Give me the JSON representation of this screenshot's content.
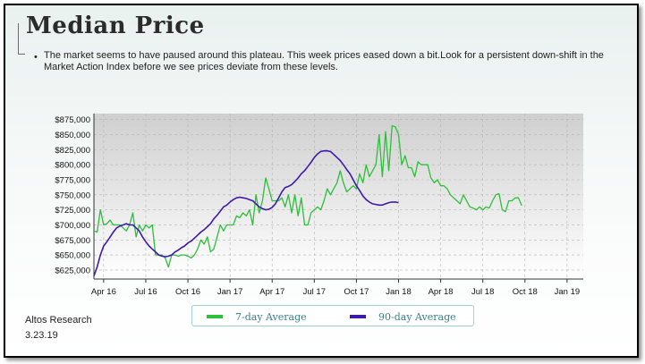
{
  "page": {
    "title": "Median Price",
    "bullet": "•",
    "description": "The market seems to have paused around this plateau. This week prices eased down a bit.Look for a persistent down-shift in the Market Action Index before we see prices deviate from these levels.",
    "source": "Altos Research",
    "date": "3.23.19"
  },
  "colors": {
    "seven_day": "#2dbf3a",
    "ninety_day": "#3d1aa8",
    "plot_bg_top": "#cfcfcf",
    "plot_bg_bottom": "#ffffff",
    "grid": "#b3b3b3"
  },
  "chart_data": {
    "type": "line",
    "title": "",
    "xlabel": "",
    "ylabel": "",
    "ylim": [
      610000,
      885000
    ],
    "xlim": [
      0,
      151
    ],
    "y_ticks": [
      625000,
      650000,
      675000,
      700000,
      725000,
      750000,
      775000,
      800000,
      825000,
      850000,
      875000
    ],
    "y_tick_labels": [
      "$625,000",
      "$650,000",
      "$675,000",
      "$700,000",
      "$725,000",
      "$750,000",
      "$775,000",
      "$800,000",
      "$825,000",
      "$850,000",
      "$875,000"
    ],
    "x_ticks": [
      3,
      16,
      29,
      42,
      55,
      68,
      81,
      94,
      107,
      120,
      133,
      146
    ],
    "x_tick_labels": [
      "Apr 16",
      "Jul 16",
      "Oct 16",
      "Jan 17",
      "Apr 17",
      "Jul 17",
      "Oct 17",
      "Jan 18",
      "Apr 18",
      "Jul 18",
      "Oct 18",
      "Jan 19"
    ],
    "grid": true,
    "legend_position": "bottom",
    "series": [
      {
        "name": "7-day Average",
        "points": [
          [
            0,
            690000
          ],
          [
            1,
            688000
          ],
          [
            2,
            725000
          ],
          [
            3,
            700000
          ],
          [
            4,
            702000
          ],
          [
            5,
            708000
          ],
          [
            6,
            700000
          ],
          [
            7,
            700000
          ],
          [
            8,
            700000
          ],
          [
            9,
            695000
          ],
          [
            10,
            690000
          ],
          [
            11,
            700000
          ],
          [
            12,
            720000
          ],
          [
            13,
            680000
          ],
          [
            14,
            700000
          ],
          [
            15,
            690000
          ],
          [
            16,
            700000
          ],
          [
            17,
            695000
          ],
          [
            18,
            700000
          ],
          [
            19,
            650000
          ],
          [
            20,
            650000
          ],
          [
            21,
            650000
          ],
          [
            22,
            645000
          ],
          [
            23,
            630000
          ],
          [
            24,
            650000
          ],
          [
            25,
            650000
          ],
          [
            26,
            648000
          ],
          [
            27,
            650000
          ],
          [
            28,
            650000
          ],
          [
            29,
            648000
          ],
          [
            30,
            645000
          ],
          [
            31,
            650000
          ],
          [
            32,
            660000
          ],
          [
            33,
            675000
          ],
          [
            34,
            668000
          ],
          [
            35,
            680000
          ],
          [
            36,
            655000
          ],
          [
            37,
            660000
          ],
          [
            38,
            680000
          ],
          [
            39,
            700000
          ],
          [
            40,
            690000
          ],
          [
            41,
            700000
          ],
          [
            42,
            700000
          ],
          [
            43,
            700000
          ],
          [
            44,
            715000
          ],
          [
            45,
            712000
          ],
          [
            46,
            720000
          ],
          [
            47,
            715000
          ],
          [
            48,
            725000
          ],
          [
            49,
            700000
          ],
          [
            50,
            750000
          ],
          [
            51,
            720000
          ],
          [
            52,
            740000
          ],
          [
            53,
            778000
          ],
          [
            54,
            760000
          ],
          [
            55,
            740000
          ],
          [
            56,
            740000
          ],
          [
            57,
            740000
          ],
          [
            58,
            745000
          ],
          [
            59,
            730000
          ],
          [
            60,
            750000
          ],
          [
            61,
            720000
          ],
          [
            62,
            750000
          ],
          [
            63,
            715000
          ],
          [
            64,
            745000
          ],
          [
            65,
            700000
          ],
          [
            66,
            700000
          ],
          [
            67,
            720000
          ],
          [
            68,
            725000
          ],
          [
            69,
            730000
          ],
          [
            70,
            725000
          ],
          [
            71,
            740000
          ],
          [
            72,
            760000
          ],
          [
            73,
            750000
          ],
          [
            74,
            760000
          ],
          [
            75,
            770000
          ],
          [
            76,
            790000
          ],
          [
            77,
            770000
          ],
          [
            78,
            755000
          ],
          [
            79,
            760000
          ],
          [
            80,
            765000
          ],
          [
            81,
            760000
          ],
          [
            82,
            785000
          ],
          [
            83,
            770000
          ],
          [
            84,
            800000
          ],
          [
            85,
            780000
          ],
          [
            86,
            790000
          ],
          [
            87,
            800000
          ],
          [
            88,
            850000
          ],
          [
            89,
            780000
          ],
          [
            90,
            855000
          ],
          [
            91,
            790000
          ],
          [
            92,
            865000
          ],
          [
            93,
            863000
          ],
          [
            94,
            850000
          ],
          [
            95,
            800000
          ],
          [
            96,
            815000
          ],
          [
            97,
            795000
          ],
          [
            98,
            795000
          ],
          [
            99,
            780000
          ],
          [
            100,
            805000
          ],
          [
            101,
            800000
          ],
          [
            102,
            800000
          ],
          [
            103,
            800000
          ],
          [
            104,
            778000
          ],
          [
            105,
            770000
          ],
          [
            106,
            775000
          ],
          [
            107,
            765000
          ],
          [
            108,
            765000
          ],
          [
            109,
            760000
          ],
          [
            110,
            750000
          ],
          [
            111,
            745000
          ],
          [
            112,
            740000
          ],
          [
            113,
            735000
          ],
          [
            114,
            750000
          ],
          [
            115,
            740000
          ],
          [
            116,
            730000
          ],
          [
            117,
            728000
          ],
          [
            118,
            725000
          ],
          [
            119,
            730000
          ],
          [
            120,
            725000
          ],
          [
            121,
            730000
          ],
          [
            122,
            728000
          ],
          [
            123,
            740000
          ],
          [
            124,
            750000
          ],
          [
            125,
            752000
          ],
          [
            126,
            725000
          ],
          [
            127,
            722000
          ],
          [
            128,
            740000
          ],
          [
            129,
            740000
          ],
          [
            130,
            745000
          ],
          [
            131,
            745000
          ],
          [
            132,
            732000
          ]
        ]
      },
      {
        "name": "90-day Average",
        "points": [
          [
            0,
            615000
          ],
          [
            1,
            630000
          ],
          [
            2,
            650000
          ],
          [
            3,
            665000
          ],
          [
            4,
            672000
          ],
          [
            5,
            680000
          ],
          [
            6,
            688000
          ],
          [
            7,
            695000
          ],
          [
            8,
            698000
          ],
          [
            9,
            700000
          ],
          [
            10,
            702000
          ],
          [
            11,
            700000
          ],
          [
            12,
            700000
          ],
          [
            13,
            695000
          ],
          [
            14,
            690000
          ],
          [
            15,
            680000
          ],
          [
            16,
            672000
          ],
          [
            17,
            665000
          ],
          [
            18,
            660000
          ],
          [
            19,
            655000
          ],
          [
            20,
            650000
          ],
          [
            21,
            648000
          ],
          [
            22,
            647000
          ],
          [
            23,
            648000
          ],
          [
            24,
            650000
          ],
          [
            25,
            655000
          ],
          [
            26,
            658000
          ],
          [
            27,
            662000
          ],
          [
            28,
            665000
          ],
          [
            29,
            670000
          ],
          [
            30,
            673000
          ],
          [
            31,
            678000
          ],
          [
            32,
            683000
          ],
          [
            33,
            688000
          ],
          [
            34,
            692000
          ],
          [
            35,
            697000
          ],
          [
            36,
            702000
          ],
          [
            37,
            710000
          ],
          [
            38,
            716000
          ],
          [
            39,
            723000
          ],
          [
            40,
            730000
          ],
          [
            41,
            733000
          ],
          [
            42,
            738000
          ],
          [
            43,
            742000
          ],
          [
            44,
            745000
          ],
          [
            45,
            746000
          ],
          [
            46,
            745000
          ],
          [
            47,
            744000
          ],
          [
            48,
            742000
          ],
          [
            49,
            740000
          ],
          [
            50,
            735000
          ],
          [
            51,
            730000
          ],
          [
            52,
            727000
          ],
          [
            53,
            725000
          ],
          [
            54,
            726000
          ],
          [
            55,
            729000
          ],
          [
            56,
            735000
          ],
          [
            57,
            745000
          ],
          [
            58,
            755000
          ],
          [
            59,
            762000
          ],
          [
            60,
            764000
          ],
          [
            61,
            767000
          ],
          [
            62,
            772000
          ],
          [
            63,
            778000
          ],
          [
            64,
            785000
          ],
          [
            65,
            790000
          ],
          [
            66,
            797000
          ],
          [
            67,
            804000
          ],
          [
            68,
            812000
          ],
          [
            69,
            818000
          ],
          [
            70,
            822000
          ],
          [
            71,
            823000
          ],
          [
            72,
            823000
          ],
          [
            73,
            822000
          ],
          [
            74,
            817000
          ],
          [
            75,
            812000
          ],
          [
            76,
            807000
          ],
          [
            77,
            800000
          ],
          [
            78,
            792000
          ],
          [
            79,
            785000
          ],
          [
            80,
            775000
          ],
          [
            81,
            765000
          ],
          [
            82,
            757000
          ],
          [
            83,
            748000
          ],
          [
            84,
            742000
          ],
          [
            85,
            738000
          ],
          [
            86,
            735000
          ],
          [
            87,
            734000
          ],
          [
            88,
            733000
          ],
          [
            89,
            733000
          ],
          [
            90,
            735000
          ],
          [
            91,
            737000
          ],
          [
            92,
            738000
          ],
          [
            93,
            738000
          ],
          [
            94,
            737000
          ]
        ]
      }
    ]
  }
}
